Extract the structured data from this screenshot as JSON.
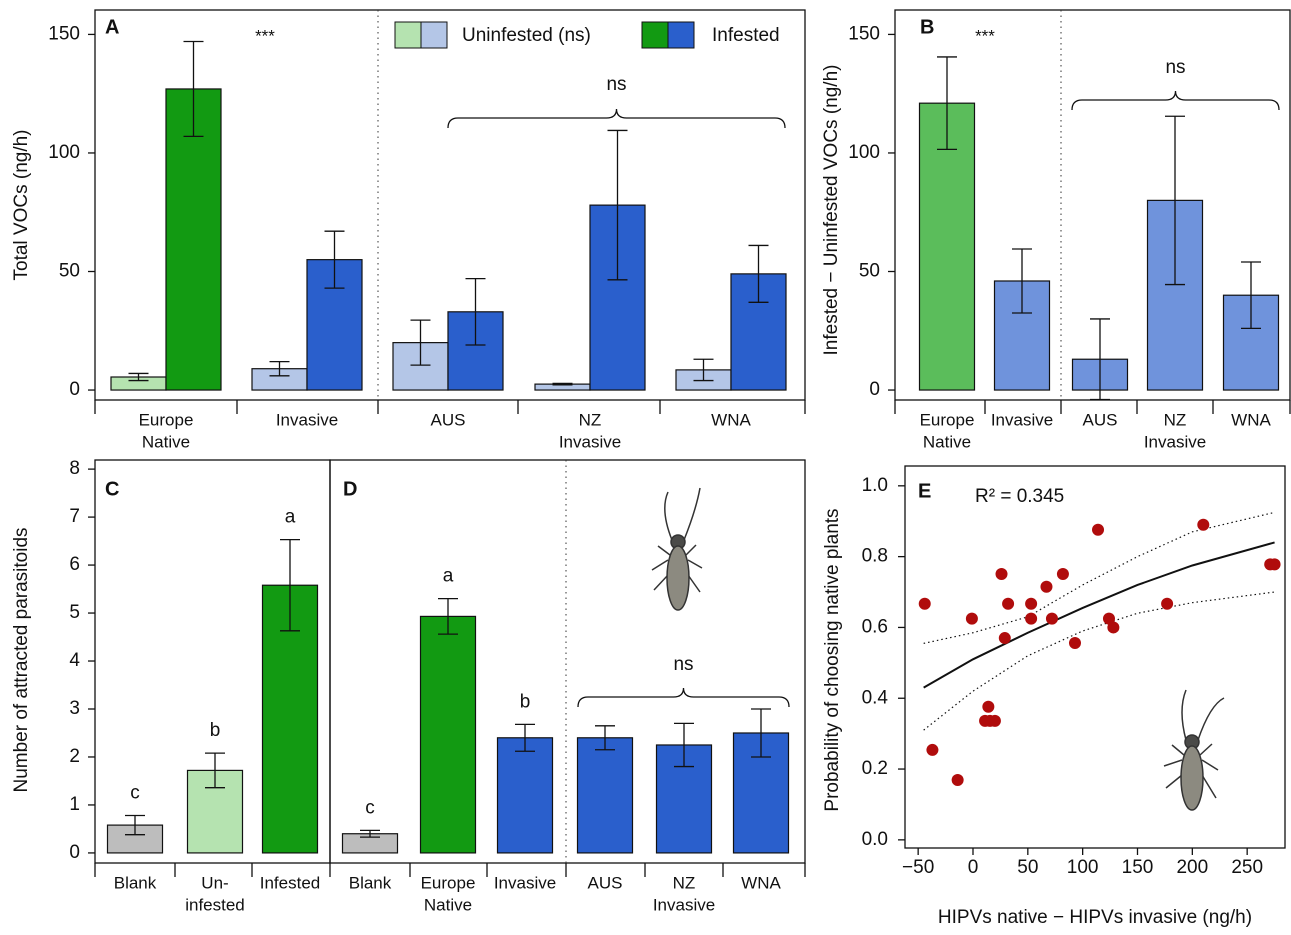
{
  "chart_data": [
    {
      "type": "bar",
      "label": "A",
      "ylabel": "Total VOCs (ng/h)",
      "categories": [
        [
          "Europe",
          "Native"
        ],
        [
          "Invasive"
        ],
        [
          "AUS"
        ],
        [
          "NZ"
        ],
        [
          "WNA"
        ]
      ],
      "group_label": "Invasive",
      "series": [
        {
          "name": "Uninfested (ns)",
          "colors": [
            "#b5e3b0",
            "#b4c6e7",
            "#b4c6e7",
            "#b4c6e7",
            "#b4c6e7"
          ],
          "values": [
            5.5,
            9,
            20,
            2.5,
            8.5
          ],
          "errors": [
            1.5,
            3,
            9.5,
            0.3,
            4.5
          ]
        },
        {
          "name": "Infested",
          "colors": [
            "#129a12",
            "#2a5fcc",
            "#2a5fcc",
            "#2a5fcc",
            "#2a5fcc"
          ],
          "values": [
            127,
            55,
            33,
            78,
            49
          ],
          "errors": [
            20,
            12,
            14,
            31.5,
            12
          ]
        }
      ],
      "annotation": "***",
      "bracket_label": "ns",
      "ylim": [
        -4.2,
        160.3
      ],
      "yticks": [
        0,
        50,
        100,
        150
      ]
    },
    {
      "type": "bar",
      "label": "B",
      "ylabel": "Infested − Uninfested VOCs (ng/h)",
      "categories": [
        [
          "Europe",
          "Native"
        ],
        [
          "Invasive"
        ],
        [
          "AUS"
        ],
        [
          "NZ"
        ],
        [
          "WNA"
        ]
      ],
      "group_label": "Invasive",
      "series": [
        {
          "colors": [
            "#5bbd5b",
            "#6f93dc",
            "#6f93dc",
            "#6f93dc",
            "#6f93dc"
          ],
          "values": [
            121,
            46,
            13,
            80,
            40
          ],
          "errors": [
            19.5,
            13.5,
            17,
            35.5,
            14
          ]
        }
      ],
      "annotation": "***",
      "bracket_label": "ns",
      "ylim": [
        -4.2,
        160.3
      ],
      "yticks": [
        0,
        50,
        100,
        150
      ]
    },
    {
      "type": "bar",
      "label": "C",
      "ylabel": "Number of attracted parasitoids",
      "categories": [
        [
          "Blank"
        ],
        [
          "Un-",
          "infested"
        ],
        [
          "Infested"
        ]
      ],
      "series": [
        {
          "colors": [
            "#bdbdbd",
            "#b5e3b0",
            "#129a12"
          ],
          "values": [
            0.58,
            1.72,
            5.58
          ],
          "errors": [
            0.2,
            0.36,
            0.95
          ],
          "letters": [
            "c",
            "b",
            "a"
          ]
        }
      ],
      "ylim": [
        -0.21,
        8.19
      ],
      "yticks": [
        0,
        1,
        2,
        3,
        4,
        5,
        6,
        7,
        8
      ]
    },
    {
      "type": "bar",
      "label": "D",
      "categories": [
        [
          "Blank"
        ],
        [
          "Europe",
          "Native"
        ],
        [
          "Invasive"
        ],
        [
          "AUS"
        ],
        [
          "NZ"
        ],
        [
          "WNA"
        ]
      ],
      "group_label": "Invasive",
      "series": [
        {
          "colors": [
            "#bdbdbd",
            "#129a12",
            "#2a5fcc",
            "#2a5fcc",
            "#2a5fcc",
            "#2a5fcc"
          ],
          "values": [
            0.4,
            4.93,
            2.4,
            2.4,
            2.25,
            2.5
          ],
          "errors": [
            0.07,
            0.37,
            0.28,
            0.25,
            0.45,
            0.5
          ],
          "letters": [
            "c",
            "a",
            "b",
            null,
            null,
            null
          ]
        }
      ],
      "bracket_label": "ns",
      "ylim": [
        -0.21,
        8.19
      ]
    },
    {
      "type": "scatter",
      "label": "E",
      "annotation": "R² = 0.345",
      "xlabel": "HIPVs native − HIPVs invasive (ng/h)",
      "ylabel": "Probability of choosing native plants",
      "color": "#b00c0c",
      "x": [
        -44,
        -37,
        -14,
        -1,
        14,
        11,
        15.5,
        20,
        26,
        29,
        32,
        53,
        53,
        67,
        72,
        82,
        93,
        114,
        124,
        128,
        177,
        210,
        271,
        275
      ],
      "y": [
        0.667,
        0.254,
        0.169,
        0.625,
        0.376,
        0.336,
        0.336,
        0.336,
        0.751,
        0.57,
        0.667,
        0.667,
        0.625,
        0.715,
        0.625,
        0.751,
        0.556,
        0.876,
        0.625,
        0.6,
        0.667,
        0.89,
        0.778,
        0.778
      ],
      "fit": {
        "x": [
          -45,
          0,
          50,
          100,
          150,
          200,
          275
        ],
        "y": [
          0.43,
          0.51,
          0.585,
          0.655,
          0.72,
          0.775,
          0.84
        ],
        "upper": [
          0.555,
          0.585,
          0.63,
          0.72,
          0.8,
          0.87,
          0.925
        ],
        "lower": [
          0.31,
          0.42,
          0.52,
          0.59,
          0.64,
          0.67,
          0.7
        ]
      },
      "xlim": [
        -62,
        284.5
      ],
      "ylim": [
        -0.023,
        1.056
      ],
      "xticks": [
        {
          "value": -50,
          "label": "−50"
        },
        0,
        50,
        100,
        150,
        200,
        250
      ],
      "yticks": [
        {
          "value": 0,
          "label": "0.0"
        },
        0.2,
        0.4,
        0.6,
        0.8,
        {
          "value": 1,
          "label": "1.0"
        }
      ]
    }
  ]
}
